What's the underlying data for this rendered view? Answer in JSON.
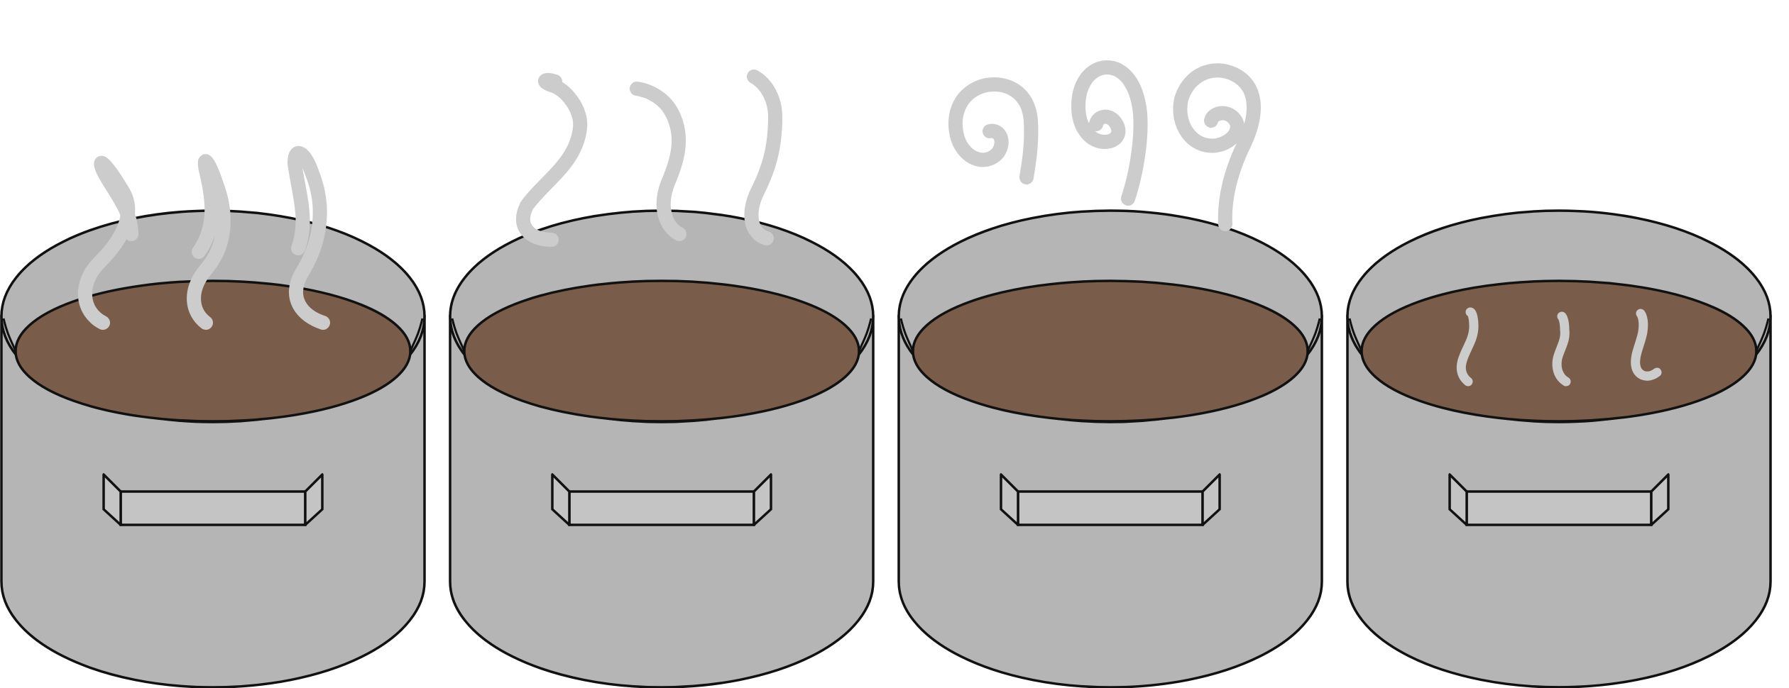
{
  "colors": {
    "background": "#ffffff",
    "pot_body": "#b5b5b5",
    "pot_outline": "#111111",
    "liquid": "#7a5c4b",
    "steam": "#cccccc",
    "handle_fill": "#c4c4c4"
  },
  "pots": [
    {
      "name": "pot-1",
      "steam_style": "tall-wavy-plumes",
      "steam_count": 3
    },
    {
      "name": "pot-2",
      "steam_style": "rising-hooked-plumes",
      "steam_count": 3
    },
    {
      "name": "pot-3",
      "steam_style": "spiral-curls",
      "steam_count": 3
    },
    {
      "name": "pot-4",
      "steam_style": "small-wisps",
      "steam_count": 3
    }
  ]
}
